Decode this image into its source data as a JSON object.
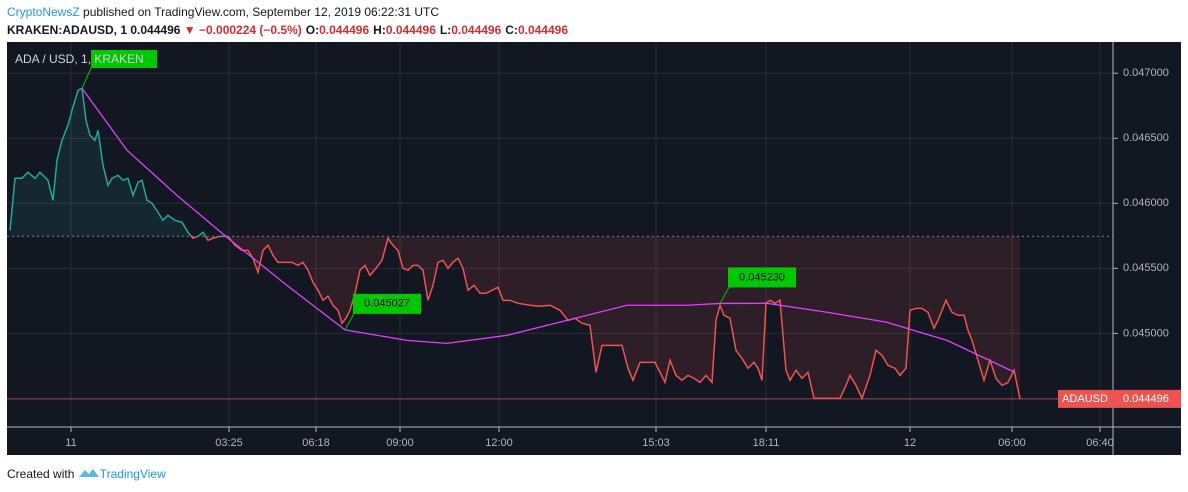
{
  "header": {
    "publisher": "CryptoNewsZ",
    "published_text": "published on TradingView.com, September 12, 2019 06:22:31 UTC"
  },
  "symbol_line": {
    "symbol": "KRAKEN:ADAUSD, 1",
    "last": "0.044496",
    "change": "−0.000224 (−0.5%)",
    "ohlc": [
      {
        "label": "O:",
        "value": "0.044496"
      },
      {
        "label": "H:",
        "value": "0.044496"
      },
      {
        "label": "L:",
        "value": "0.044496"
      },
      {
        "label": "C:",
        "value": "0.044496"
      }
    ]
  },
  "footer": {
    "created_text": "Created with",
    "brand": "TradingView"
  },
  "chart_data": {
    "type": "line",
    "title": "ADA / USD, 1, KRAKEN",
    "xlim": [
      0,
      1106
    ],
    "ylim": [
      0.04428,
      0.04724
    ],
    "xticks": [
      {
        "value": 64,
        "label": "11"
      },
      {
        "value": 222,
        "label": "03:25"
      },
      {
        "value": 309,
        "label": "06:18"
      },
      {
        "value": 393,
        "label": "09:00"
      },
      {
        "value": 492,
        "label": "12:00"
      },
      {
        "value": 649,
        "label": "15:03"
      },
      {
        "value": 759,
        "label": "18:11"
      },
      {
        "value": 903,
        "label": "12"
      },
      {
        "value": 1005,
        "label": "06:00"
      },
      {
        "value": 1093,
        "label": "06:40"
      }
    ],
    "yticks": [
      {
        "value": 0.045,
        "label": "0.045000"
      },
      {
        "value": 0.0455,
        "label": "0.045500"
      },
      {
        "value": 0.046,
        "label": "0.046000"
      },
      {
        "value": 0.0465,
        "label": "0.046500"
      },
      {
        "value": 0.047,
        "label": "0.047000"
      }
    ],
    "grid": true,
    "baseline": 0.045746,
    "up_color": "#26a69a",
    "down_color": "#ef5350",
    "series": [
      {
        "name": "ADAUSD",
        "x": [
          3,
          8,
          15,
          21,
          28,
          33,
          41,
          46,
          50,
          55,
          61,
          65,
          71,
          75,
          79,
          83,
          88,
          91,
          96,
          101,
          105,
          111,
          116,
          121,
          126,
          131,
          135,
          140,
          145,
          151,
          156,
          161,
          168,
          175,
          181,
          186,
          191,
          196,
          201,
          206,
          213,
          221,
          228,
          235,
          241,
          246,
          251,
          256,
          261,
          266,
          271,
          278,
          285,
          291,
          296,
          301,
          306,
          311,
          316,
          321,
          326,
          331,
          335,
          339,
          343,
          348,
          353,
          358,
          363,
          369,
          375,
          381,
          386,
          391,
          396,
          401,
          406,
          411,
          416,
          421,
          426,
          431,
          436,
          441,
          446,
          451,
          456,
          461,
          467,
          473,
          479,
          485,
          491,
          496,
          503,
          511,
          523,
          533,
          543,
          553,
          561,
          568,
          575,
          583,
          589,
          595,
          601,
          608,
          615,
          621,
          626,
          633,
          641,
          648,
          653,
          658,
          663,
          669,
          675,
          681,
          687,
          693,
          699,
          705,
          709,
          713,
          717,
          723,
          729,
          735,
          741,
          747,
          751,
          755,
          759,
          763,
          768,
          773,
          779,
          783,
          789,
          795,
          801,
          807,
          815,
          823,
          833,
          839,
          843,
          849,
          855,
          863,
          869,
          875,
          881,
          888,
          893,
          899,
          903,
          909,
          915,
          921,
          927,
          931,
          935,
          939,
          945,
          951,
          957,
          961,
          965,
          971,
          977,
          983,
          989,
          995,
          1001,
          1007,
          1013
        ],
        "values": [
          0.045792,
          0.046192,
          0.046192,
          0.046238,
          0.046192,
          0.046238,
          0.046177,
          0.046023,
          0.046331,
          0.046484,
          0.0466,
          0.046715,
          0.046869,
          0.046884,
          0.046638,
          0.046523,
          0.046484,
          0.046561,
          0.046292,
          0.046138,
          0.046192,
          0.046215,
          0.046177,
          0.046192,
          0.046061,
          0.046161,
          0.046177,
          0.046023,
          0.046,
          0.045931,
          0.045869,
          0.045908,
          0.045869,
          0.045854,
          0.045777,
          0.045731,
          0.045746,
          0.045777,
          0.045715,
          0.045731,
          0.045746,
          0.045746,
          0.045677,
          0.045638,
          0.045638,
          0.045577,
          0.045469,
          0.045638,
          0.045677,
          0.0456,
          0.045546,
          0.045546,
          0.045546,
          0.045523,
          0.045546,
          0.045485,
          0.045392,
          0.045331,
          0.045254,
          0.045285,
          0.045216,
          0.045177,
          0.045077,
          0.045116,
          0.045177,
          0.045308,
          0.045485,
          0.045523,
          0.045446,
          0.0455,
          0.045562,
          0.045731,
          0.045677,
          0.045638,
          0.0455,
          0.045485,
          0.045523,
          0.045523,
          0.045485,
          0.045254,
          0.045369,
          0.045546,
          0.045562,
          0.0455,
          0.045546,
          0.045577,
          0.0455,
          0.045331,
          0.045369,
          0.045308,
          0.045308,
          0.045331,
          0.045354,
          0.045254,
          0.045254,
          0.045231,
          0.045216,
          0.045208,
          0.045216,
          0.045177,
          0.0451,
          0.045116,
          0.045077,
          0.045062,
          0.0447,
          0.044908,
          0.044908,
          0.044908,
          0.044908,
          0.044731,
          0.044639,
          0.044777,
          0.044777,
          0.044777,
          0.0447,
          0.044623,
          0.044793,
          0.044677,
          0.044639,
          0.044677,
          0.044654,
          0.044623,
          0.044677,
          0.044623,
          0.0451,
          0.045216,
          0.045139,
          0.045116,
          0.044869,
          0.044808,
          0.044731,
          0.044777,
          0.044731,
          0.044639,
          0.045231,
          0.045254,
          0.045231,
          0.045254,
          0.044716,
          0.044639,
          0.044716,
          0.044654,
          0.0447,
          0.0445,
          0.0445,
          0.0445,
          0.0445,
          0.0446,
          0.044677,
          0.0446,
          0.0445,
          0.044677,
          0.044869,
          0.044831,
          0.044754,
          0.044731,
          0.044677,
          0.044731,
          0.045177,
          0.045192,
          0.045192,
          0.045161,
          0.045039,
          0.0451,
          0.045177,
          0.045254,
          0.045161,
          0.045139,
          0.045139,
          0.045023,
          0.044946,
          0.044793,
          0.044639,
          0.044793,
          0.044654,
          0.0446,
          0.044623,
          0.044716,
          0.044496
        ]
      },
      {
        "color": "#e040fb",
        "x": [
          75,
          120,
          170,
          220,
          280,
          338,
          400,
          440,
          500,
          560,
          620,
          680,
          713,
          760,
          820,
          880,
          940,
          1008
        ],
        "values": [
          0.046884,
          0.046408,
          0.046061,
          0.045738,
          0.045369,
          0.045027,
          0.044946,
          0.044923,
          0.044985,
          0.0451,
          0.045216,
          0.045216,
          0.04523,
          0.045231,
          0.045162,
          0.045085,
          0.044946,
          0.0447
        ]
      }
    ],
    "annotations": [
      {
        "text": "0.045027",
        "x": 338,
        "value": 0.045027
      },
      {
        "text": "0.045230",
        "x": 713,
        "value": 0.04523
      }
    ]
  }
}
